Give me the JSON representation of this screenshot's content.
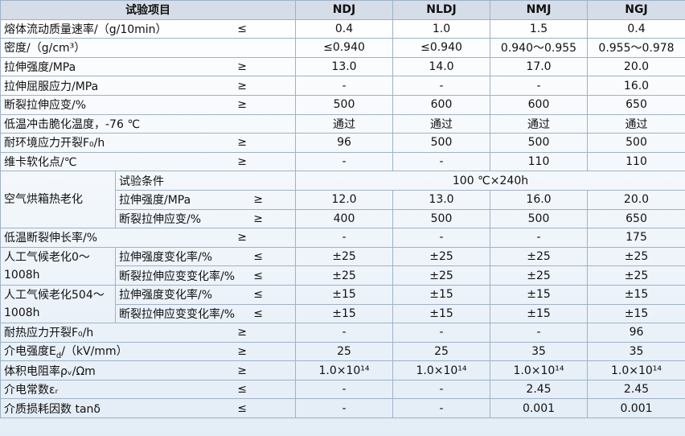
{
  "header": {
    "item": "试验项目",
    "grades": [
      "NDJ",
      "NLDJ",
      "NMJ",
      "NGJ"
    ]
  },
  "rows": [
    {
      "label": "熔体流动质量速率/（g/10min）",
      "sign": "≤",
      "values": [
        "0.4",
        "1.0",
        "1.5",
        "0.4"
      ]
    },
    {
      "label": "密度/（g/cm³）",
      "values": [
        "≤0.940",
        "≤0.940",
        "0.940～0.955",
        "0.955～0.978"
      ]
    },
    {
      "label": "拉伸强度/MPa",
      "sign": "≥",
      "values": [
        "13.0",
        "14.0",
        "17.0",
        "20.0"
      ]
    },
    {
      "label": "拉伸屈服应力/MPa",
      "sign": "≥",
      "values": [
        "-",
        "-",
        "-",
        "16.0"
      ]
    },
    {
      "label": "断裂拉伸应变/%",
      "sign": "≥",
      "values": [
        "500",
        "600",
        "600",
        "650"
      ]
    },
    {
      "label": "低温冲击脆化温度，-76 ℃",
      "values": [
        "通过",
        "通过",
        "通过",
        "通过"
      ]
    },
    {
      "label": "耐环境应力开裂F₀/h",
      "sign": "≥",
      "values": [
        "96",
        "500",
        "500",
        "500"
      ]
    },
    {
      "label": "维卡软化点/℃",
      "sign": "≥",
      "values": [
        "-",
        "-",
        "110",
        "110"
      ]
    },
    {
      "group": "空气烘箱热老化",
      "items": [
        {
          "label": "试验条件",
          "condition": "100 ℃×240h"
        },
        {
          "label": "拉伸强度/MPa",
          "sign": "≥",
          "values": [
            "12.0",
            "13.0",
            "16.0",
            "20.0"
          ]
        },
        {
          "label": "断裂拉伸应变/%",
          "sign": "≥",
          "values": [
            "400",
            "500",
            "500",
            "650"
          ]
        }
      ]
    },
    {
      "label": "低温断裂伸长率/%",
      "sign": "≥",
      "values": [
        "-",
        "-",
        "-",
        "175"
      ]
    },
    {
      "group": "人工气候老化0～1008h",
      "items": [
        {
          "label": "拉伸强度变化率/%",
          "sign": "≤",
          "values": [
            "±25",
            "±25",
            "±25",
            "±25"
          ]
        },
        {
          "label": "断裂拉伸应变变化率/%",
          "sign": "≤",
          "values": [
            "±25",
            "±25",
            "±25",
            "±25"
          ]
        }
      ]
    },
    {
      "group": "人工气候老化504～1008h",
      "items": [
        {
          "label": "拉伸强度变化率/%",
          "sign": "≤",
          "values": [
            "±15",
            "±15",
            "±15",
            "±15"
          ]
        },
        {
          "label": "断裂拉伸应变变化率/%",
          "sign": "≤",
          "values": [
            "±15",
            "±15",
            "±15",
            "±15"
          ]
        }
      ]
    },
    {
      "label": "耐热应力开裂F₀/h",
      "sign": "≥",
      "values": [
        "-",
        "-",
        "-",
        "96"
      ]
    },
    {
      "label": [
        "介电强度E",
        "d",
        "/（kV/mm）"
      ],
      "sign": "≥",
      "values": [
        "25",
        "25",
        "35",
        "35"
      ]
    },
    {
      "label": "体积电阻率ρᵥ/Ωm",
      "sign": "≥",
      "values": [
        "1.0×10¹⁴",
        "1.0×10¹⁴",
        "1.0×10¹⁴",
        "1.0×10¹⁴"
      ]
    },
    {
      "label": "介电常数εᵣ",
      "sign": "≤",
      "values": [
        "-",
        "-",
        "2.45",
        "2.45"
      ]
    },
    {
      "label": "介质损耗因数 tanδ",
      "sign": "≤",
      "values": [
        "-",
        "-",
        "0.001",
        "0.001"
      ]
    }
  ]
}
